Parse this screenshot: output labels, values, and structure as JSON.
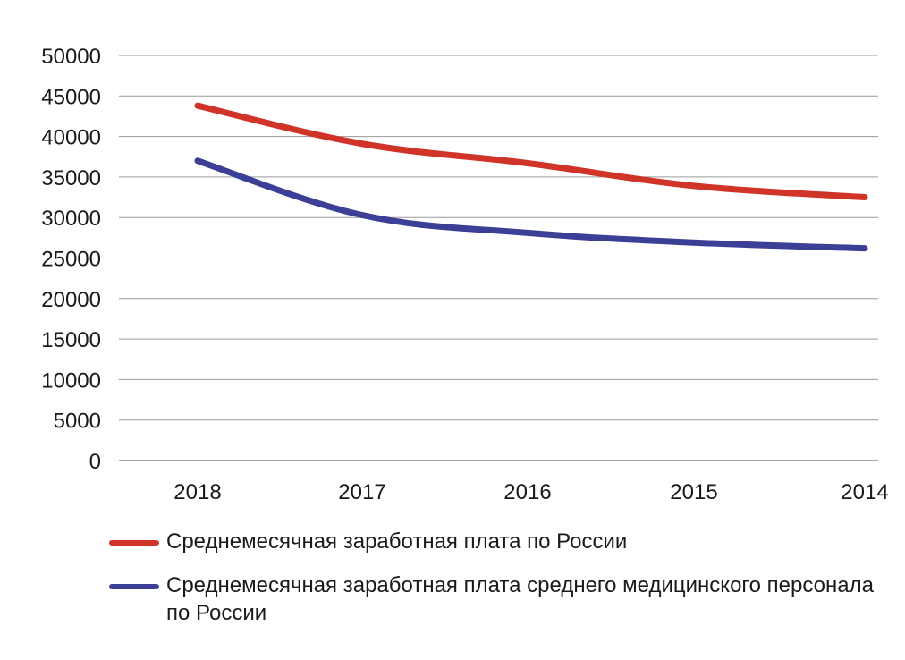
{
  "chart_data": {
    "type": "line",
    "title": "",
    "xlabel": "",
    "ylabel": "",
    "categories": [
      "2018",
      "2017",
      "2016",
      "2015",
      "2014"
    ],
    "ylim": [
      0,
      50000
    ],
    "yticks": [
      0,
      5000,
      10000,
      15000,
      20000,
      25000,
      30000,
      35000,
      40000,
      45000,
      50000
    ],
    "grid": true,
    "legend_position": "bottom",
    "series": [
      {
        "name": "Среднемесячная заработная плата по России",
        "color": "#d03328",
        "values": [
          43800,
          39100,
          36700,
          33900,
          32500
        ]
      },
      {
        "name": "Среднемесячная заработная плата среднего медицинского персонала по России",
        "color": "#3c3f96",
        "values": [
          37000,
          30300,
          28100,
          26900,
          26200
        ]
      }
    ]
  }
}
